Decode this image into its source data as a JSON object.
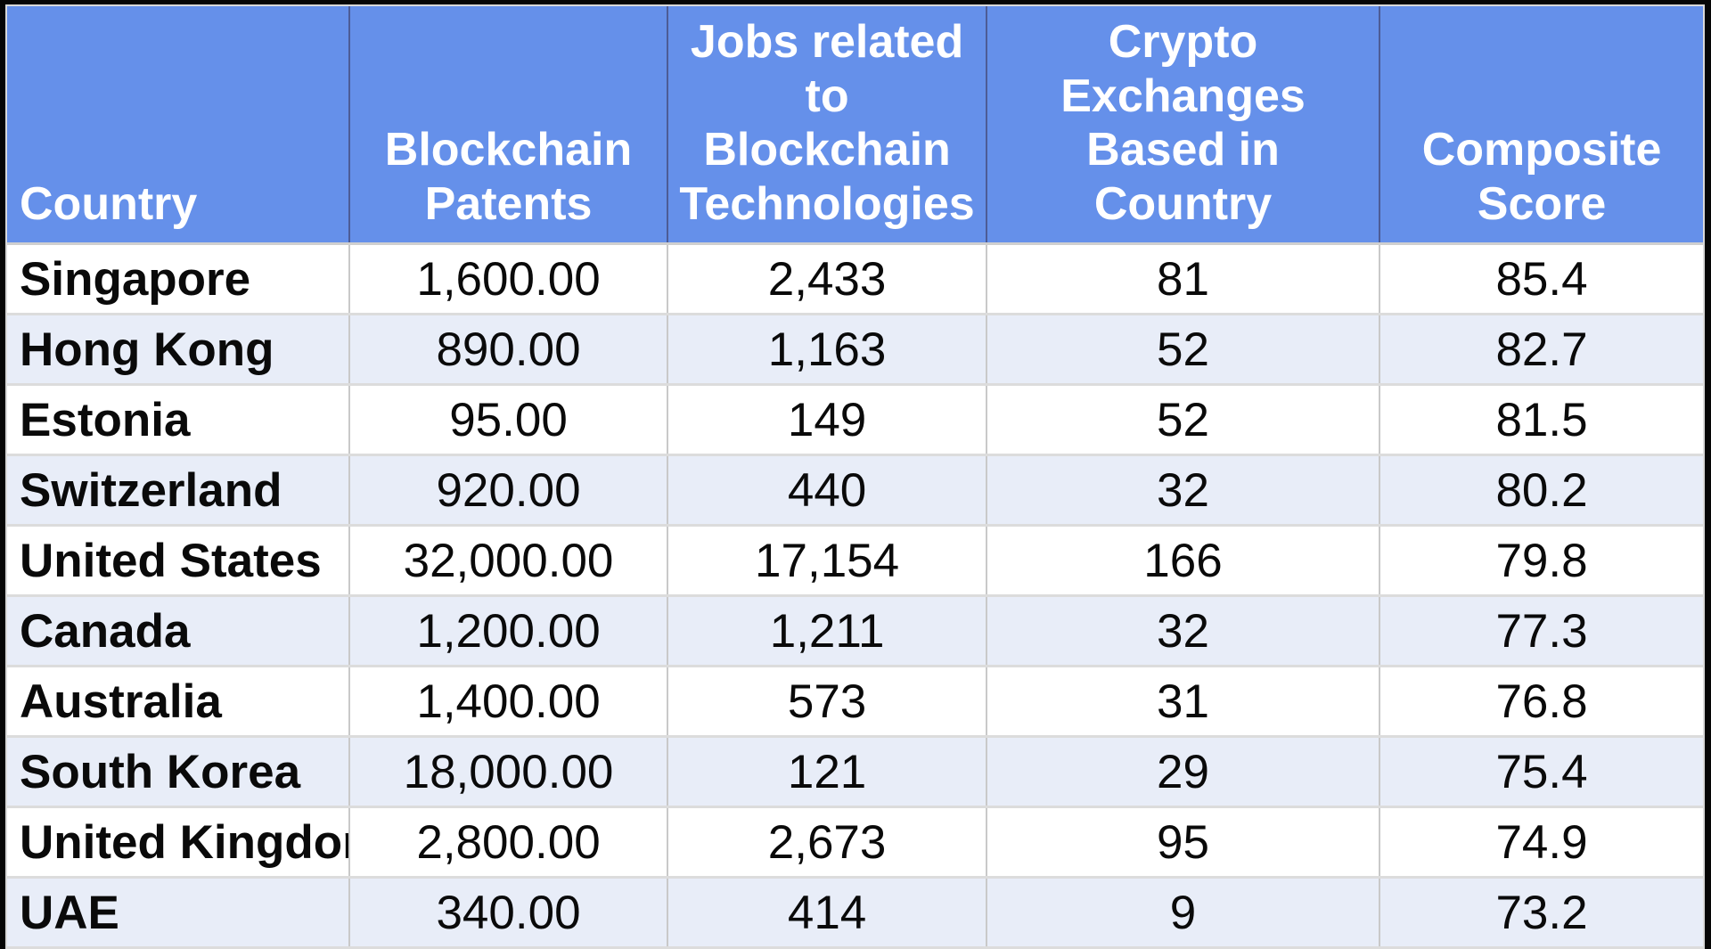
{
  "chart_data": {
    "type": "table",
    "columns": [
      {
        "label": "Country"
      },
      {
        "label": "Blockchain\nPatents"
      },
      {
        "label": "Jobs related\nto\nBlockchain\nTechnologies"
      },
      {
        "label": "Crypto\nExchanges\nBased in\nCountry"
      },
      {
        "label": "Composite\nScore"
      }
    ],
    "rows": [
      [
        "Singapore",
        "1,600.00",
        "2,433",
        "81",
        "85.4"
      ],
      [
        "Hong Kong",
        "890.00",
        "1,163",
        "52",
        "82.7"
      ],
      [
        "Estonia",
        "95.00",
        "149",
        "52",
        "81.5"
      ],
      [
        "Switzerland",
        "920.00",
        "440",
        "32",
        "80.2"
      ],
      [
        "United States",
        "32,000.00",
        "17,154",
        "166",
        "79.8"
      ],
      [
        "Canada",
        "1,200.00",
        "1,211",
        "32",
        "77.3"
      ],
      [
        "Australia",
        "1,400.00",
        "573",
        "31",
        "76.8"
      ],
      [
        "South Korea",
        "18,000.00",
        "121",
        "29",
        "75.4"
      ],
      [
        "United Kingdom",
        "2,800.00",
        "2,673",
        "95",
        "74.9"
      ],
      [
        "UAE",
        "340.00",
        "414",
        "9",
        "73.2"
      ]
    ]
  },
  "colors": {
    "header_background": "#6590ea",
    "header_text": "#ffffff",
    "stripe_background": "#e8edf8",
    "row_background": "#ffffff",
    "body_text": "#0a0a0a",
    "gridline": "#c9c9c9",
    "outer_frame": "#060606"
  }
}
